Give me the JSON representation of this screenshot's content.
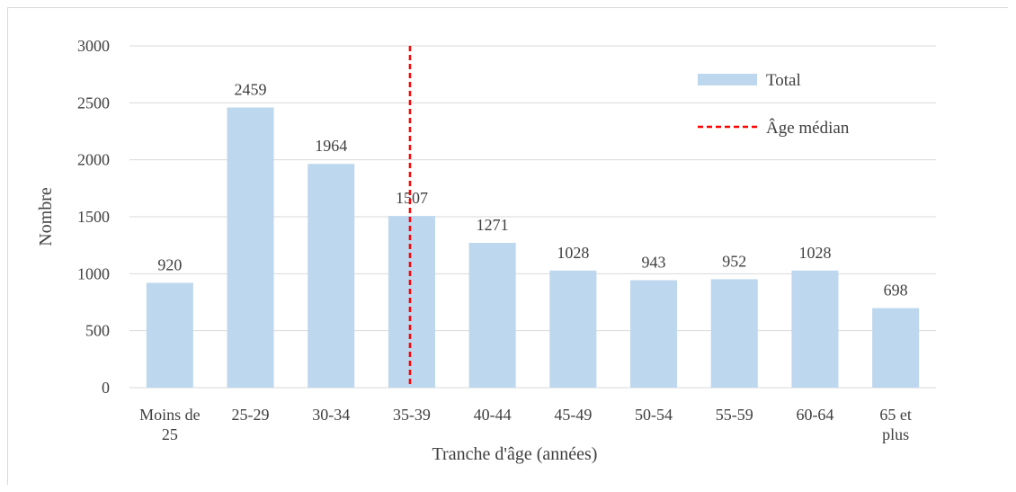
{
  "colors": {
    "bar": "#bdd7ee",
    "grid": "#d9d9d9",
    "median": "#ff0000",
    "text": "#404040"
  },
  "chart_data": {
    "type": "bar",
    "categories": [
      [
        "Moins de",
        "25"
      ],
      [
        "25-29"
      ],
      [
        "30-34"
      ],
      [
        "35-39"
      ],
      [
        "40-44"
      ],
      [
        "45-49"
      ],
      [
        "50-54"
      ],
      [
        "55-59"
      ],
      [
        "60-64"
      ],
      [
        "65 et",
        "plus"
      ]
    ],
    "series": [
      {
        "name": "Total",
        "values": [
          920,
          2459,
          1964,
          1507,
          1271,
          1028,
          943,
          952,
          1028,
          698
        ]
      }
    ],
    "data_labels": [
      "920",
      "2459",
      "1964",
      "1507",
      "1271",
      "1028",
      "943",
      "952",
      "1028",
      "698"
    ],
    "yticks": [
      "0",
      "500",
      "1000",
      "1500",
      "2000",
      "2500",
      "3000"
    ],
    "ylim": [
      0,
      3000
    ],
    "xlabel": "Tranche d'âge (années)",
    "ylabel": "Nombre",
    "grid": true,
    "median_line": {
      "name": "Âge médian",
      "category": "35-39",
      "style": "dashed"
    },
    "legend": {
      "position": "top-right",
      "entries": [
        "Total",
        "Âge médian"
      ]
    }
  }
}
